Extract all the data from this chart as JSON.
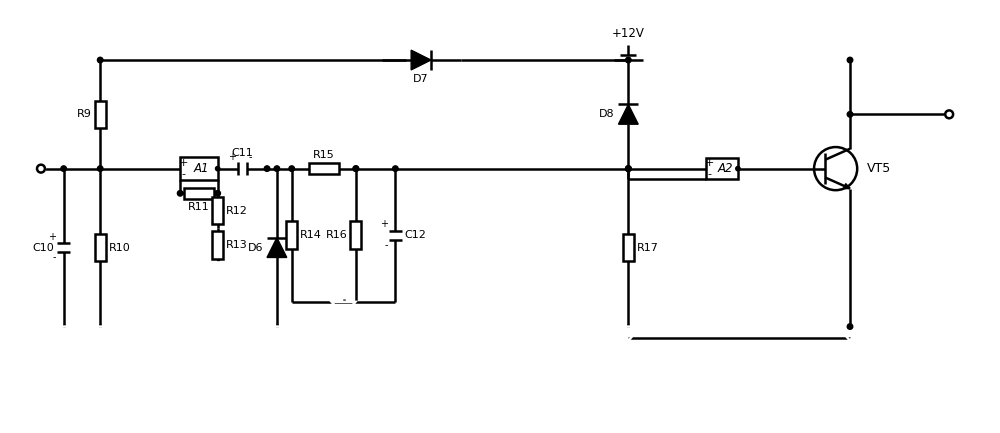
{
  "bg_color": "#ffffff",
  "line_color": "#000000",
  "line_width": 1.8,
  "figsize": [
    10.0,
    4.33
  ],
  "dpi": 100,
  "xlim": [
    0,
    100
  ],
  "ylim": [
    0,
    43.3
  ]
}
